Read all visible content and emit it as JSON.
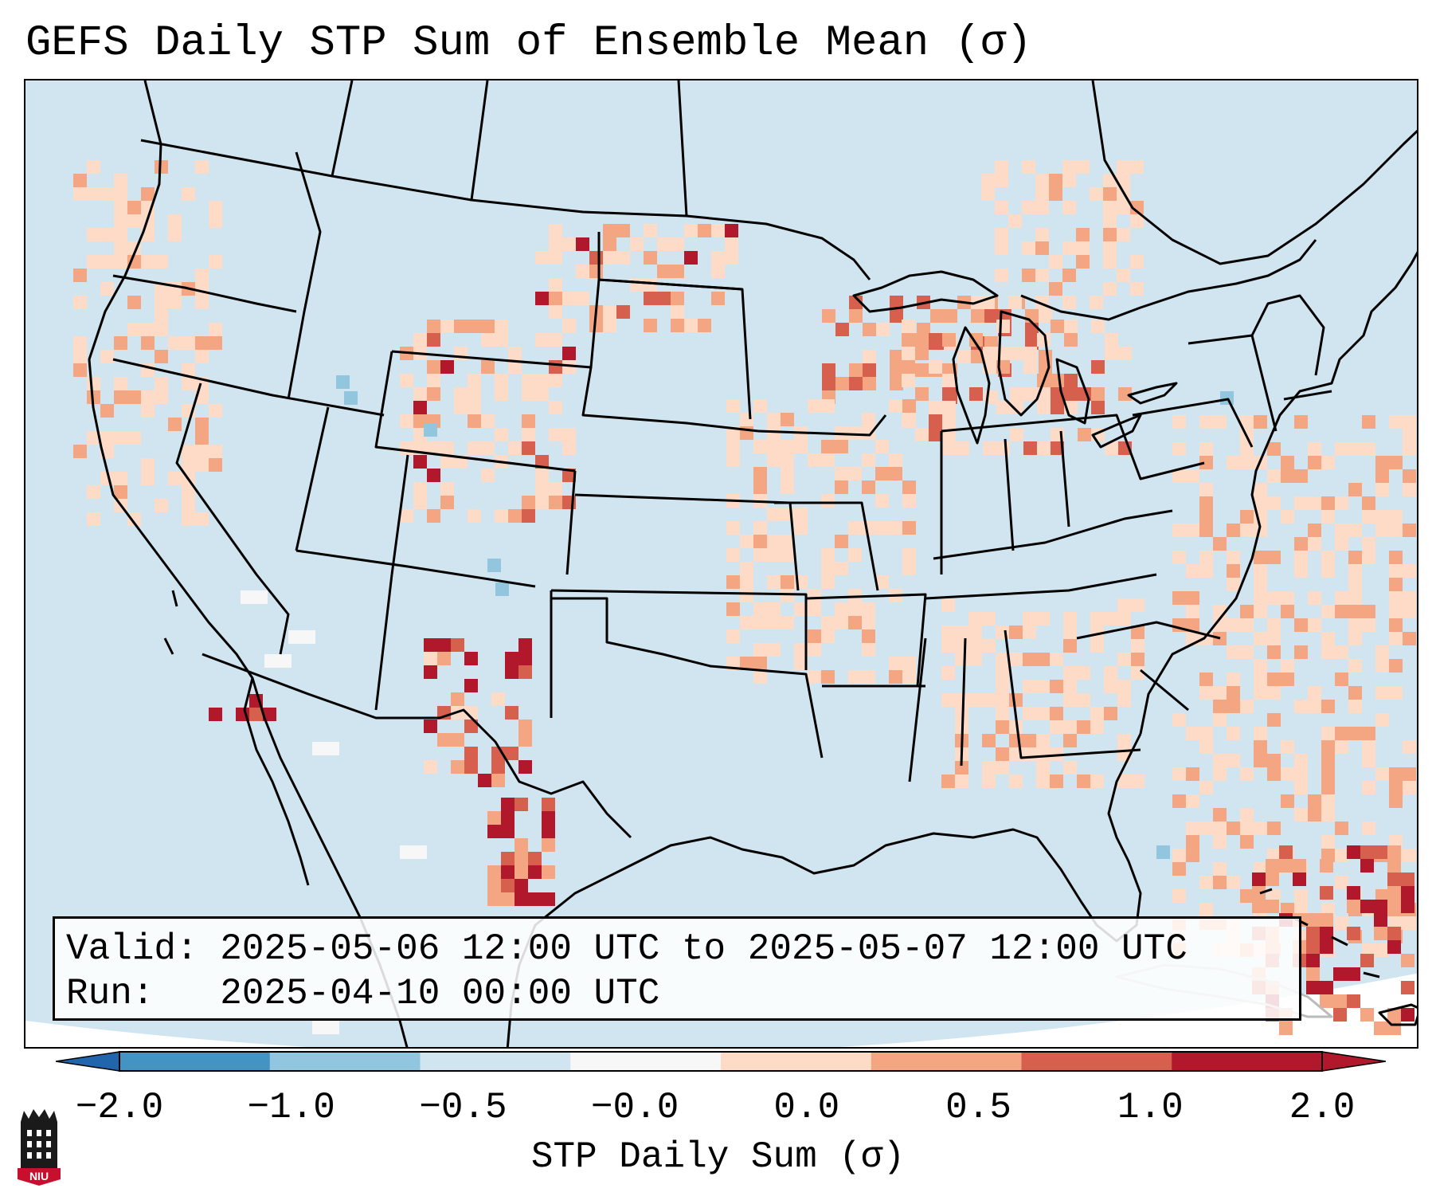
{
  "title": "GEFS Daily STP Sum of Ensemble Mean (σ)",
  "info": {
    "valid_label": "Valid:",
    "valid_value": "2025-05-06 12:00 UTC to 2025-05-07 12:00 UTC",
    "run_label": "Run:",
    "run_value": "2025-04-10 00:00 UTC"
  },
  "colorbar": {
    "label": "STP Daily Sum (σ)",
    "ticks": [
      "−2.0",
      "−1.0",
      "−0.5",
      "−0.0",
      "0.0",
      "0.5",
      "1.0",
      "2.0"
    ],
    "colors": [
      "#4393c3",
      "#92c5de",
      "#d1e5f0",
      "#f7f7f7",
      "#fddbc7",
      "#f4a582",
      "#d6604d",
      "#b2182b"
    ],
    "under_color": "#2166ac",
    "over_color": "#b2182b"
  },
  "map": {
    "background_color": "#d1e5f0",
    "projection": "Lambert Conformal (CONUS)",
    "features": [
      "coastlines",
      "country borders",
      "state borders"
    ],
    "hotspots": [
      {
        "region": "Wisconsin / Michigan",
        "level": "0.5 to 2.0"
      },
      {
        "region": "Eastern Montana / Western North Dakota",
        "level": "1.0 to 2.0"
      },
      {
        "region": "Southern New Mexico / Western Texas",
        "level": "above 2.0"
      },
      {
        "region": "Northwestern Mexico",
        "level": "above 2.0"
      },
      {
        "region": "Hispaniola / Eastern Caribbean",
        "level": "1.0 to 2.0"
      }
    ]
  },
  "logo": {
    "text": "NIU"
  }
}
